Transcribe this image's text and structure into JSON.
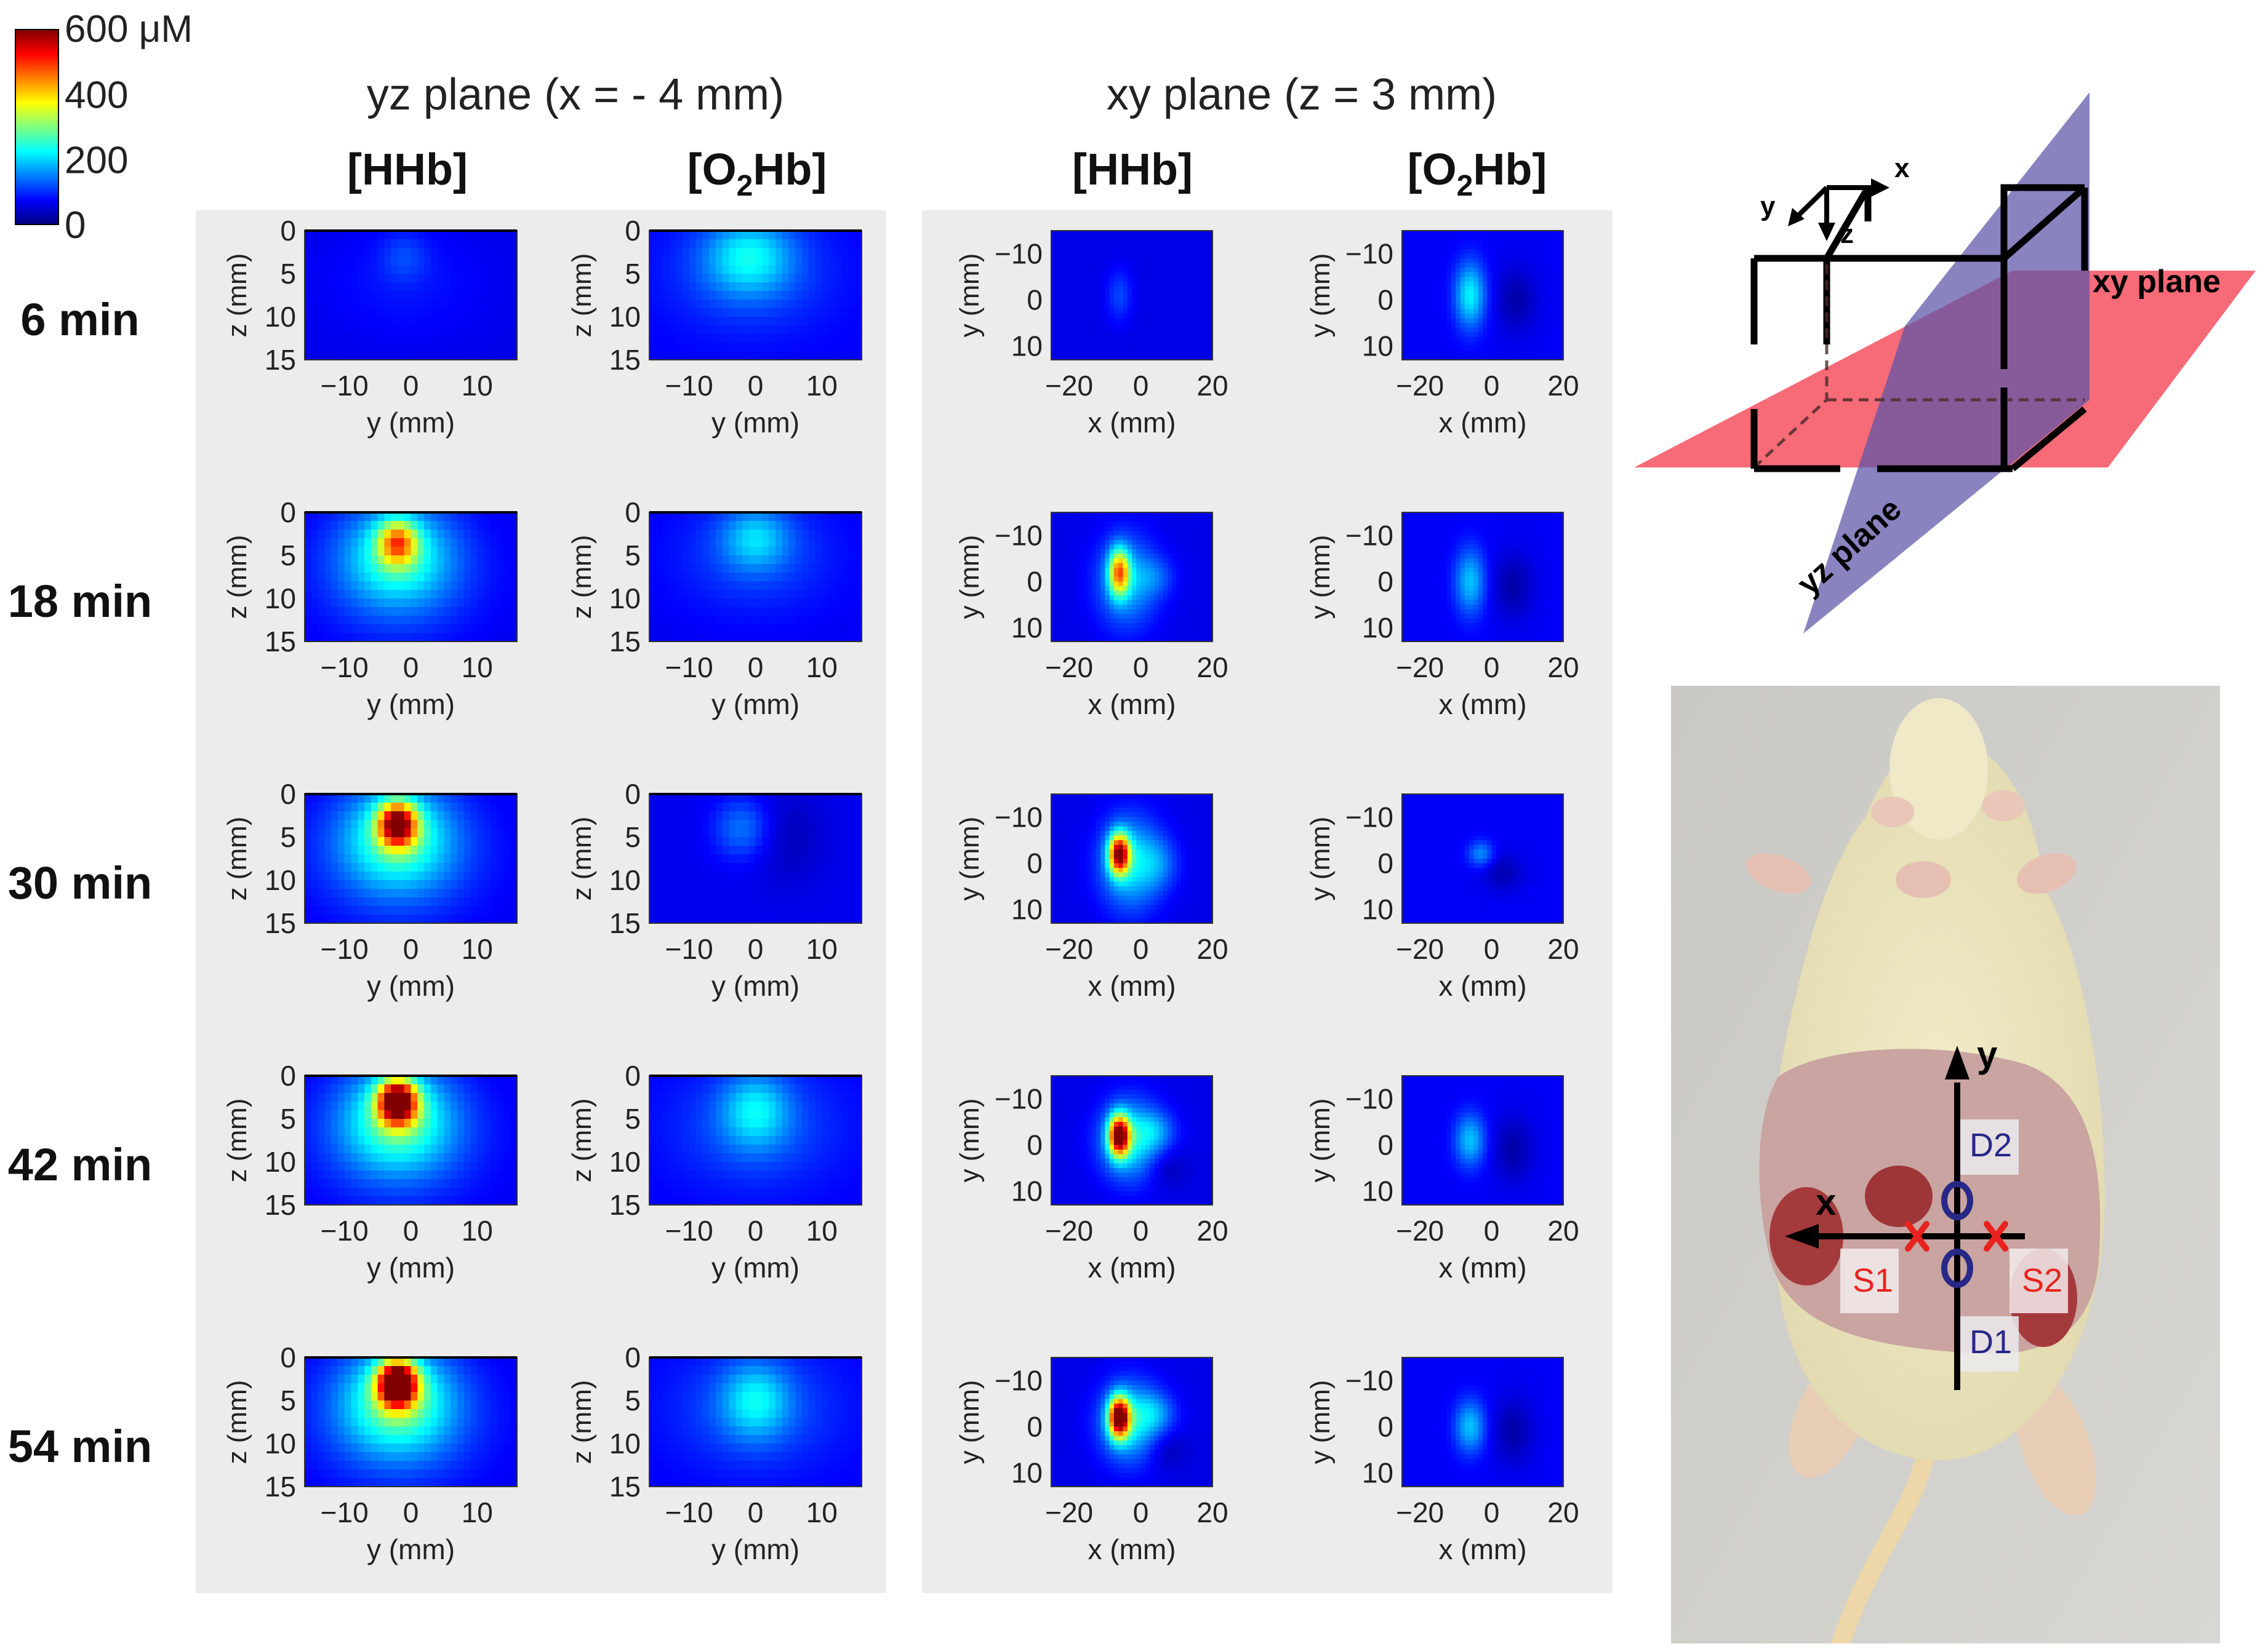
{
  "chart_data": {
    "type": "heatmap",
    "colorbar": {
      "unit_label": "600 μM",
      "ticks": [
        "400",
        "200",
        "0"
      ],
      "range": [
        0,
        600
      ],
      "colormap": "jet"
    },
    "groups": [
      {
        "title": "yz plane (x = - 4 mm)"
      },
      {
        "title": "xy plane (z = 3 mm)"
      }
    ],
    "columns": [
      {
        "main": "[HHb]",
        "sub": "",
        "plane": "yz",
        "species": "HHb"
      },
      {
        "main": "[O",
        "sub": "2",
        "tail": "Hb]",
        "plane": "yz",
        "species": "O2Hb"
      },
      {
        "main": "[HHb]",
        "sub": "",
        "plane": "xy",
        "species": "HHb"
      },
      {
        "main": "[O",
        "sub": "2",
        "tail": "Hb]",
        "plane": "xy",
        "species": "O2Hb"
      }
    ],
    "rows": [
      "6 min",
      "18 min",
      "30 min",
      "42 min",
      "54 min"
    ],
    "axes": {
      "yz": {
        "xlabel": "y (mm)",
        "ylabel": "z (mm)",
        "xticks": [
          "−10",
          "0",
          "10"
        ],
        "xtick_values": [
          -10,
          0,
          10
        ],
        "xlim": [
          -16,
          16
        ],
        "yticks": [
          "0",
          "5",
          "10",
          "15"
        ],
        "ytick_values": [
          0,
          5,
          10,
          15
        ],
        "ylim": [
          0,
          15
        ]
      },
      "xy": {
        "xlabel": "x (mm)",
        "ylabel": "y (mm)",
        "xticks": [
          "−20",
          "0",
          "20"
        ],
        "xtick_values": [
          -20,
          0,
          20
        ],
        "xlim": [
          -25,
          20
        ],
        "yticks": [
          "−10",
          "0",
          "10"
        ],
        "ytick_values": [
          -10,
          0,
          10
        ],
        "ylim": [
          -15,
          13
        ]
      }
    },
    "panels": [
      [
        {
          "bg": 60,
          "blobs": [
            {
              "cx": -1,
              "cy": 3,
              "sx": 2.5,
              "sy": 2.0,
              "amp": 40
            },
            {
              "cx": -1,
              "cy": 6,
              "sx": 9,
              "sy": 5,
              "amp": 25
            }
          ]
        },
        {
          "bg": 70,
          "blobs": [
            {
              "cx": -1,
              "cy": 3,
              "sx": 4.5,
              "sy": 3.0,
              "amp": 120
            },
            {
              "cx": -1,
              "cy": 5,
              "sx": 9,
              "sy": 5,
              "amp": 50
            }
          ]
        },
        {
          "bg": 60,
          "blobs": [
            {
              "cx": -6,
              "cy": -1,
              "sx": 2.5,
              "sy": 4,
              "amp": 55
            }
          ]
        },
        {
          "bg": 70,
          "blobs": [
            {
              "cx": -6,
              "cy": -1,
              "sx": 3,
              "sy": 5,
              "amp": 150
            },
            {
              "cx": 7,
              "cy": 0,
              "sx": 4,
              "sy": 5,
              "amp": -45
            }
          ]
        }
      ],
      [
        {
          "bg": 60,
          "blobs": [
            {
              "cx": -2,
              "cy": 3.5,
              "sx": 2.0,
              "sy": 1.8,
              "amp": 260
            },
            {
              "cx": -2,
              "cy": 5,
              "sx": 5.5,
              "sy": 4.0,
              "amp": 150
            },
            {
              "cx": -2,
              "cy": 7,
              "sx": 10,
              "sy": 6,
              "amp": 60
            }
          ]
        },
        {
          "bg": 65,
          "blobs": [
            {
              "cx": 0,
              "cy": 3,
              "sx": 3.5,
              "sy": 2.5,
              "amp": 100
            },
            {
              "cx": 0,
              "cy": 5,
              "sx": 9,
              "sy": 5,
              "amp": 50
            }
          ]
        },
        {
          "bg": 60,
          "blobs": [
            {
              "cx": -6,
              "cy": -2,
              "sx": 2.0,
              "sy": 3.5,
              "amp": 320
            },
            {
              "cx": -4,
              "cy": 0,
              "sx": 6,
              "sy": 7,
              "amp": 120
            },
            {
              "cx": 4,
              "cy": -1,
              "sx": 4,
              "sy": 3,
              "amp": 50
            }
          ]
        },
        {
          "bg": 70,
          "blobs": [
            {
              "cx": -6,
              "cy": 0,
              "sx": 3,
              "sy": 5,
              "amp": 120
            },
            {
              "cx": 6,
              "cy": 1,
              "sx": 4,
              "sy": 5,
              "amp": -45
            }
          ]
        }
      ],
      [
        {
          "bg": 60,
          "blobs": [
            {
              "cx": -2,
              "cy": 3.5,
              "sx": 2.0,
              "sy": 1.8,
              "amp": 420
            },
            {
              "cx": -2,
              "cy": 5,
              "sx": 5.5,
              "sy": 4.0,
              "amp": 160
            },
            {
              "cx": -2,
              "cy": 7,
              "sx": 10,
              "sy": 6,
              "amp": 70
            }
          ]
        },
        {
          "bg": 65,
          "blobs": [
            {
              "cx": -2,
              "cy": 4,
              "sx": 3,
              "sy": 2.5,
              "amp": 80
            },
            {
              "cx": 5,
              "cy": 5,
              "sx": 4,
              "sy": 4,
              "amp": -30
            }
          ]
        },
        {
          "bg": 60,
          "blobs": [
            {
              "cx": -6,
              "cy": -2,
              "sx": 2.0,
              "sy": 3.0,
              "amp": 460
            },
            {
              "cx": -3,
              "cy": 0,
              "sx": 6,
              "sy": 7,
              "amp": 150
            },
            {
              "cx": 5,
              "cy": 0,
              "sx": 4,
              "sy": 4,
              "amp": 60
            }
          ]
        },
        {
          "bg": 70,
          "blobs": [
            {
              "cx": -3,
              "cy": -2,
              "sx": 2.5,
              "sy": 2.0,
              "amp": 90
            },
            {
              "cx": 3,
              "cy": 2,
              "sx": 4,
              "sy": 3,
              "amp": -40
            }
          ]
        }
      ],
      [
        {
          "bg": 60,
          "blobs": [
            {
              "cx": -2,
              "cy": 3,
              "sx": 2.0,
              "sy": 1.8,
              "amp": 500
            },
            {
              "cx": -2,
              "cy": 5,
              "sx": 5.5,
              "sy": 4.0,
              "amp": 170
            },
            {
              "cx": -2,
              "cy": 7,
              "sx": 10,
              "sy": 6,
              "amp": 70
            }
          ]
        },
        {
          "bg": 70,
          "blobs": [
            {
              "cx": 0,
              "cy": 4,
              "sx": 3.5,
              "sy": 3.0,
              "amp": 110
            },
            {
              "cx": 0,
              "cy": 6,
              "sx": 9,
              "sy": 5,
              "amp": 55
            }
          ]
        },
        {
          "bg": 60,
          "blobs": [
            {
              "cx": -6,
              "cy": -2,
              "sx": 2.0,
              "sy": 3.0,
              "amp": 500
            },
            {
              "cx": -3,
              "cy": -1,
              "sx": 6,
              "sy": 6,
              "amp": 160
            },
            {
              "cx": 4,
              "cy": -3,
              "sx": 4,
              "sy": 3,
              "amp": 70
            },
            {
              "cx": 7,
              "cy": 5,
              "sx": 4,
              "sy": 3,
              "amp": -35
            }
          ]
        },
        {
          "bg": 70,
          "blobs": [
            {
              "cx": -6,
              "cy": -1,
              "sx": 3,
              "sy": 4,
              "amp": 120
            },
            {
              "cx": 6,
              "cy": 1,
              "sx": 4,
              "sy": 5,
              "amp": -45
            }
          ]
        }
      ],
      [
        {
          "bg": 60,
          "blobs": [
            {
              "cx": -2,
              "cy": 3,
              "sx": 2.0,
              "sy": 1.8,
              "amp": 560
            },
            {
              "cx": -2,
              "cy": 5,
              "sx": 5.5,
              "sy": 4.0,
              "amp": 180
            },
            {
              "cx": -2,
              "cy": 7,
              "sx": 10,
              "sy": 6,
              "amp": 75
            }
          ]
        },
        {
          "bg": 70,
          "blobs": [
            {
              "cx": 0,
              "cy": 5,
              "sx": 3.5,
              "sy": 3.0,
              "amp": 110
            },
            {
              "cx": 0,
              "cy": 6,
              "sx": 9,
              "sy": 5,
              "amp": 55
            }
          ]
        },
        {
          "bg": 60,
          "blobs": [
            {
              "cx": -6,
              "cy": -2,
              "sx": 2.0,
              "sy": 3.0,
              "amp": 520
            },
            {
              "cx": -3,
              "cy": -1,
              "sx": 6,
              "sy": 6,
              "amp": 160
            },
            {
              "cx": 4,
              "cy": -3,
              "sx": 4,
              "sy": 3,
              "amp": 70
            },
            {
              "cx": 7,
              "cy": 5,
              "sx": 4,
              "sy": 3,
              "amp": -35
            }
          ]
        },
        {
          "bg": 70,
          "blobs": [
            {
              "cx": -6,
              "cy": 0,
              "sx": 3,
              "sy": 4,
              "amp": 120
            },
            {
              "cx": 6,
              "cy": 1,
              "sx": 4,
              "sy": 5,
              "amp": -45
            }
          ]
        }
      ]
    ]
  },
  "diagram": {
    "axis_x": "x",
    "axis_y": "y",
    "axis_z": "z",
    "xy_plane_label": "xy plane",
    "yz_plane_label": "yz plane"
  },
  "photo": {
    "axis_x": "x",
    "axis_y": "y",
    "labels": [
      "S1",
      "S2",
      "D1",
      "D2"
    ]
  }
}
